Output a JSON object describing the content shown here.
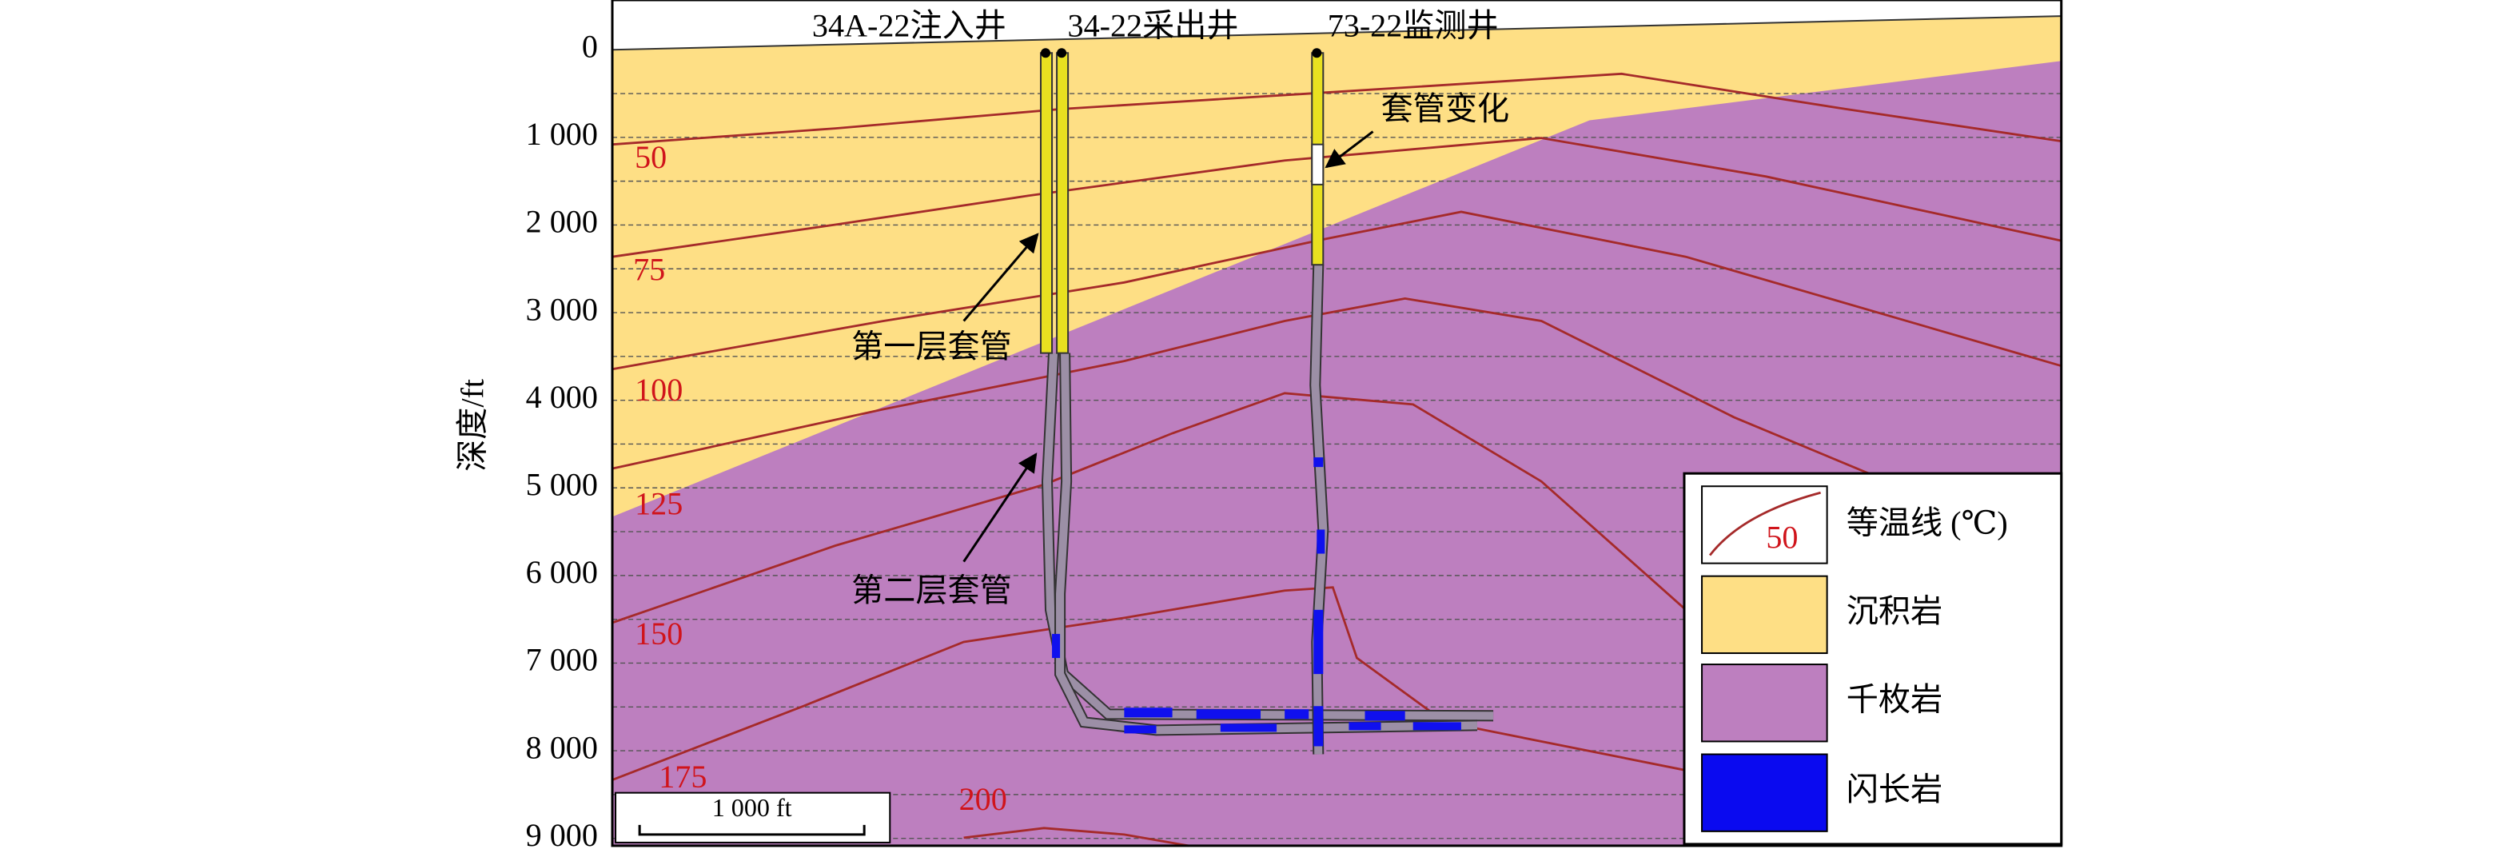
{
  "well_labels": [
    "34A-22注入井",
    "34-22采出井",
    "73-22监测井"
  ],
  "y_axis": {
    "title": "深度/ft",
    "ticks": [
      "0",
      "1 000",
      "2 000",
      "3 000",
      "4 000",
      "5 000",
      "6 000",
      "7 000",
      "8 000",
      "9 000"
    ]
  },
  "isotherm_labels": [
    "50",
    "75",
    "100",
    "125",
    "150",
    "175",
    "200"
  ],
  "annotations": {
    "casing_change": "套管变化",
    "first_casing": "第一层套管",
    "second_casing": "第二层套管"
  },
  "legend": [
    {
      "label": "等温线 (℃)",
      "sample": "50"
    },
    {
      "label": "沉积岩"
    },
    {
      "label": "千枚岩"
    },
    {
      "label": "闪长岩"
    }
  ],
  "scale_bar": "1 000 ft"
}
